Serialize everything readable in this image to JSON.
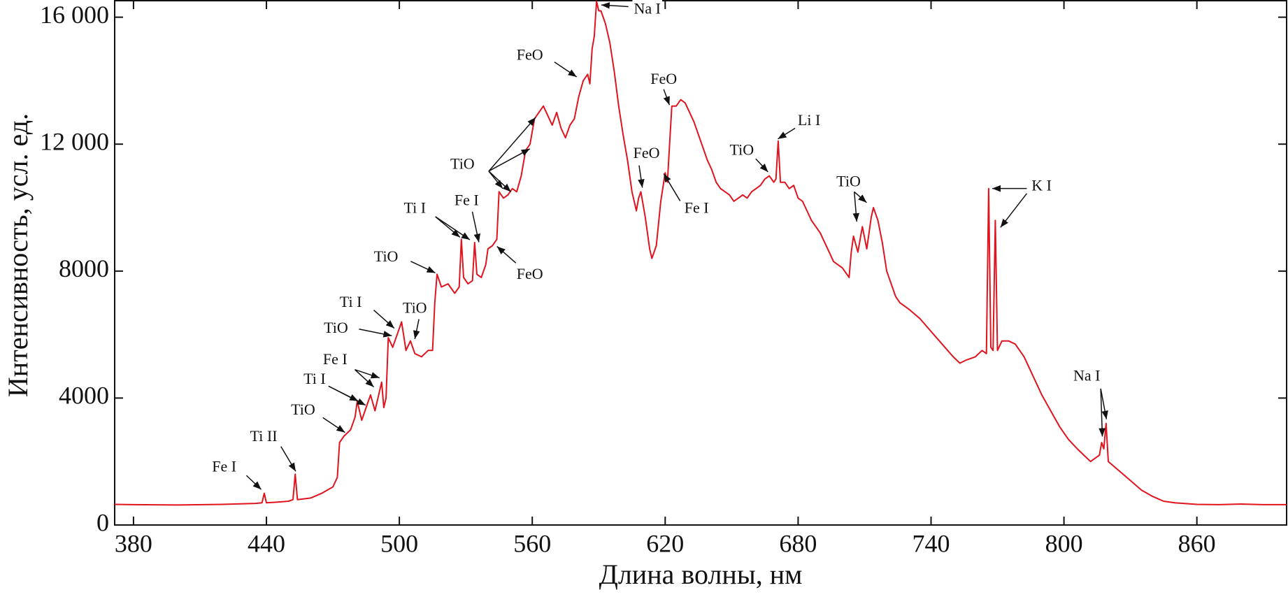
{
  "chart_data": {
    "type": "line",
    "xlabel": "Длина волны, нм",
    "ylabel": "Интенсивность, усл. ед.",
    "color": "#e0141e",
    "xlim": [
      371.5,
      900.5
    ],
    "ylim": [
      0,
      16520
    ],
    "xticks": [
      380,
      440,
      500,
      560,
      620,
      680,
      740,
      800,
      860
    ],
    "yticks": [
      0,
      4000,
      8000,
      {
        "value": 12000,
        "label": "12 000"
      },
      {
        "value": 16000,
        "label": "16 000"
      }
    ],
    "x": [
      371.5,
      380,
      400,
      420,
      435,
      438,
      439,
      440,
      445,
      450,
      452,
      453,
      454,
      460,
      465,
      470,
      472,
      473,
      475,
      478,
      480,
      481,
      483,
      485,
      487,
      489,
      491,
      492,
      493,
      494,
      495,
      497,
      499,
      501,
      503,
      505,
      507,
      510,
      513,
      515,
      516,
      517,
      519,
      522,
      525,
      527,
      528,
      529,
      531,
      533,
      534,
      535,
      537,
      539,
      540,
      542,
      544,
      545,
      547,
      549,
      551,
      553,
      555,
      557,
      559,
      561,
      563,
      565,
      567,
      569,
      571,
      573,
      575,
      577,
      579,
      581,
      583,
      585,
      586,
      587,
      588,
      589,
      590,
      591,
      593,
      595,
      597,
      599,
      601,
      603,
      605,
      607,
      608,
      609,
      611,
      613,
      614,
      616,
      618,
      620,
      621,
      622,
      623,
      625,
      627,
      629,
      631,
      633,
      635,
      637,
      639,
      641,
      643,
      645,
      647,
      649,
      651,
      653,
      655,
      657,
      659,
      661,
      663,
      665,
      667,
      669,
      670,
      671,
      672,
      674,
      676,
      678,
      680,
      682,
      684,
      686,
      688,
      690,
      692,
      694,
      696,
      698,
      700,
      702,
      703,
      704,
      705,
      707,
      709,
      711,
      713,
      714,
      716,
      718,
      720,
      722,
      724,
      726,
      730,
      735,
      740,
      745,
      750,
      753,
      756,
      760,
      763,
      765,
      766,
      767,
      768,
      769,
      770,
      772,
      775,
      778,
      782,
      786,
      790,
      794,
      798,
      802,
      806,
      809,
      812,
      816,
      817,
      818,
      819,
      820,
      825,
      830,
      835,
      840,
      845,
      850,
      860,
      870,
      880,
      890,
      900.5
    ],
    "values": [
      650,
      640,
      630,
      650,
      680,
      700,
      1000,
      700,
      720,
      750,
      800,
      1600,
      800,
      850,
      1000,
      1200,
      1500,
      2600,
      2800,
      3000,
      3400,
      3900,
      3300,
      3700,
      4100,
      3600,
      4200,
      4500,
      3700,
      4000,
      5900,
      5600,
      6000,
      6400,
      5500,
      5800,
      5400,
      5300,
      5500,
      5500,
      7000,
      7900,
      7500,
      7600,
      7300,
      7500,
      9000,
      7800,
      7600,
      7700,
      8900,
      7900,
      7800,
      8200,
      8700,
      8800,
      9000,
      10500,
      10300,
      10400,
      10600,
      10500,
      11000,
      11800,
      12000,
      12800,
      13000,
      13200,
      12900,
      12600,
      13000,
      12500,
      12200,
      12600,
      12800,
      13500,
      14000,
      14200,
      13900,
      15000,
      15400,
      16500,
      16200,
      16200,
      15800,
      15200,
      14300,
      13200,
      12300,
      11500,
      10500,
      9900,
      10300,
      10500,
      9700,
      8700,
      8400,
      8800,
      10200,
      11100,
      10800,
      12000,
      13200,
      13200,
      13400,
      13300,
      13000,
      12700,
      12300,
      11900,
      11500,
      11200,
      10800,
      10600,
      10500,
      10400,
      10200,
      10300,
      10400,
      10300,
      10500,
      10600,
      10700,
      10900,
      11000,
      10800,
      10900,
      12100,
      10800,
      10800,
      10600,
      10700,
      10300,
      10200,
      9900,
      9600,
      9400,
      9200,
      8900,
      8600,
      8300,
      8200,
      8100,
      7900,
      7800,
      8600,
      9100,
      8600,
      9400,
      8700,
      9700,
      10000,
      9600,
      8900,
      8000,
      7600,
      7200,
      7000,
      6800,
      6500,
      6100,
      5700,
      5300,
      5100,
      5200,
      5300,
      5500,
      5400,
      10600,
      5600,
      5500,
      9600,
      5500,
      5800,
      5800,
      5700,
      5300,
      4700,
      4100,
      3600,
      3100,
      2700,
      2400,
      2200,
      2000,
      2200,
      2600,
      2400,
      3200,
      2000,
      1700,
      1400,
      1100,
      900,
      750,
      700,
      650,
      640,
      660,
      640,
      640
    ],
    "annotations": [
      "Na I",
      "FeO",
      "FeO",
      "Li I",
      "TiO",
      "FeO",
      "Fe I",
      "TiO",
      "K I",
      "Na I",
      "TiO",
      "Ti I",
      "Fe I",
      "FeO",
      "TiO",
      "Ti I",
      "TiO",
      "TiO",
      "Fe I",
      "Ti I",
      "TiO",
      "Ti II",
      "Fe I"
    ]
  }
}
